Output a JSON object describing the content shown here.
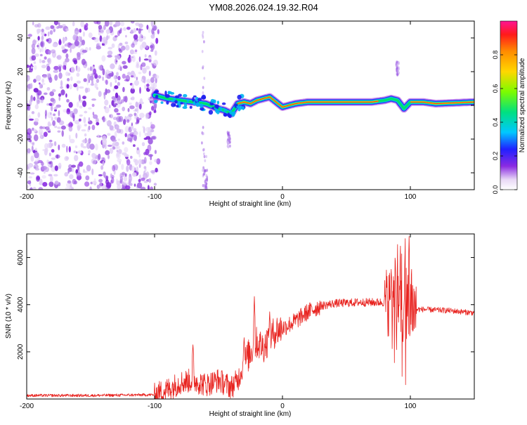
{
  "title": "YM08.2026.024.19.32.R04",
  "chart_data": [
    {
      "type": "heatmap",
      "name": "spectrogram",
      "xlabel": "Height of straight line (km)",
      "ylabel": "Frequency (Hz)",
      "xlim": [
        -200,
        150
      ],
      "ylim": [
        -50,
        50
      ],
      "x_ticks": [
        -200,
        -100,
        0,
        100
      ],
      "x_tick_labels": [
        "-200",
        "-100",
        "0",
        "100"
      ],
      "y_ticks": [
        -40,
        -20,
        0,
        20,
        40
      ],
      "y_tick_labels": [
        "-40",
        "-20",
        "0",
        "20",
        "40"
      ],
      "colorbar": {
        "label": "Normalized spectral amplitude",
        "range": [
          0,
          1
        ],
        "ticks": [
          0.0,
          0.2,
          0.4,
          0.6,
          0.8
        ],
        "tick_labels": [
          "0.0",
          "0.2",
          "0.4",
          "0.6",
          "0.8"
        ]
      },
      "ridge": {
        "x": [
          -100,
          -90,
          -80,
          -70,
          -60,
          -50,
          -45,
          -40,
          -35,
          -30,
          -25,
          -20,
          -15,
          -10,
          -5,
          0,
          5,
          10,
          20,
          30,
          50,
          70,
          80,
          85,
          90,
          95,
          100,
          110,
          120,
          150
        ],
        "y": [
          6,
          4,
          3,
          2,
          1,
          -2,
          -3,
          -5,
          1,
          2,
          1,
          3,
          4,
          5,
          2,
          -1,
          0,
          1,
          2,
          2,
          2,
          2,
          3,
          4,
          3,
          -2,
          2,
          2,
          1,
          2
        ]
      }
    },
    {
      "type": "line",
      "name": "snr",
      "xlabel": "Height of straight line (km)",
      "ylabel": "SNR (10 * v/v)",
      "xlim": [
        -200,
        150
      ],
      "ylim": [
        0,
        7000
      ],
      "x_ticks": [
        -200,
        -100,
        0,
        100
      ],
      "x_tick_labels": [
        "-200",
        "-100",
        "0",
        "100"
      ],
      "y_ticks": [
        2000,
        4000,
        6000
      ],
      "y_tick_labels": [
        "2000",
        "4000",
        "6000"
      ],
      "series": [
        {
          "name": "SNR",
          "color": "#e8231f",
          "envelope_x": [
            -200,
            -150,
            -100,
            -90,
            -80,
            -70,
            -60,
            -50,
            -40,
            -35,
            -30,
            -25,
            -20,
            -15,
            -10,
            -5,
            0,
            10,
            20,
            30,
            40,
            60,
            80,
            85,
            90,
            95,
            100,
            105,
            110,
            130,
            150
          ],
          "envelope_y": [
            150,
            150,
            180,
            400,
            700,
            800,
            600,
            800,
            500,
            800,
            1500,
            2000,
            2400,
            2200,
            2600,
            2900,
            3000,
            3300,
            3700,
            3950,
            4050,
            4100,
            4100,
            4200,
            4300,
            3800,
            4000,
            3800,
            3800,
            3750,
            3650
          ],
          "spike_x": [
            -70,
            -30,
            -22,
            -10,
            85,
            88,
            92,
            96,
            99,
            101
          ],
          "spike_y": [
            2300,
            2600,
            4350,
            3700,
            5500,
            6500,
            6000,
            6800,
            6900,
            5500
          ]
        }
      ]
    }
  ]
}
